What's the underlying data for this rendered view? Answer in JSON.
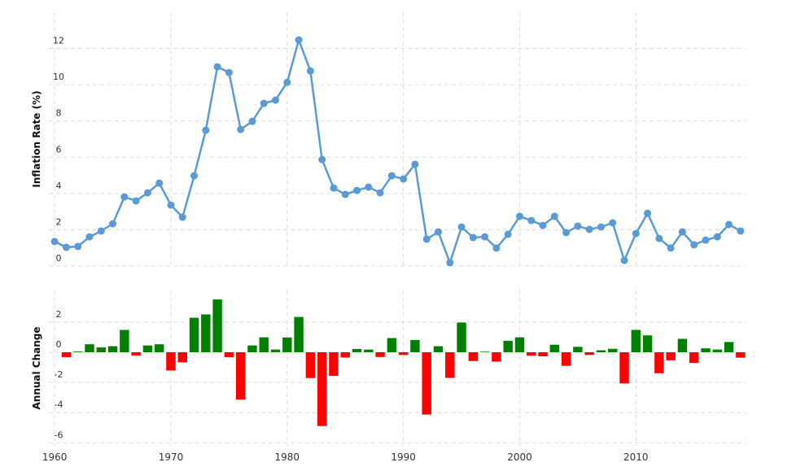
{
  "chart_data": [
    {
      "type": "line",
      "y_label": "Inflation Rate (%)",
      "x": [
        1960,
        1961,
        1962,
        1963,
        1964,
        1965,
        1966,
        1967,
        1968,
        1969,
        1970,
        1971,
        1972,
        1973,
        1974,
        1975,
        1976,
        1977,
        1978,
        1979,
        1980,
        1981,
        1982,
        1983,
        1984,
        1985,
        1986,
        1987,
        1988,
        1989,
        1990,
        1991,
        1992,
        1993,
        1994,
        1995,
        1996,
        1997,
        1998,
        1999,
        2000,
        2001,
        2002,
        2003,
        2004,
        2005,
        2006,
        2007,
        2008,
        2009,
        2010,
        2011,
        2012,
        2013,
        2014,
        2015,
        2016,
        2017,
        2018,
        2019
      ],
      "values": [
        1.35,
        1.03,
        1.08,
        1.61,
        1.93,
        2.33,
        3.81,
        3.59,
        4.04,
        4.57,
        3.36,
        2.69,
        4.98,
        7.49,
        10.99,
        10.67,
        7.53,
        7.98,
        8.97,
        9.15,
        10.13,
        12.47,
        10.76,
        5.87,
        4.3,
        3.95,
        4.17,
        4.35,
        4.04,
        4.98,
        4.8,
        5.61,
        1.48,
        1.88,
        0.18,
        2.15,
        1.57,
        1.61,
        0.99,
        1.75,
        2.74,
        2.51,
        2.24,
        2.74,
        1.84,
        2.2,
        2.02,
        2.15,
        2.38,
        0.31,
        1.79,
        2.91,
        1.52,
        0.99,
        1.88,
        1.17,
        1.43,
        1.61,
        2.29,
        1.93
      ],
      "color": "#5b9bd5",
      "xlim": [
        1959.5,
        2019.5
      ],
      "ylim": [
        0,
        14
      ],
      "yticks": [
        0,
        2,
        4,
        6,
        8,
        10,
        12
      ],
      "grid": true
    },
    {
      "type": "bar",
      "y_label": "Annual Change",
      "x": [
        1961,
        1962,
        1963,
        1964,
        1965,
        1966,
        1967,
        1968,
        1969,
        1970,
        1971,
        1972,
        1973,
        1974,
        1975,
        1976,
        1977,
        1978,
        1979,
        1980,
        1981,
        1982,
        1983,
        1984,
        1985,
        1986,
        1987,
        1988,
        1989,
        1990,
        1991,
        1992,
        1993,
        1994,
        1995,
        1996,
        1997,
        1998,
        1999,
        2000,
        2001,
        2002,
        2003,
        2004,
        2005,
        2006,
        2007,
        2008,
        2009,
        2010,
        2011,
        2012,
        2013,
        2014,
        2015,
        2016,
        2017,
        2018,
        2019
      ],
      "values": [
        -0.32,
        0.05,
        0.53,
        0.32,
        0.4,
        1.48,
        -0.22,
        0.45,
        0.53,
        -1.21,
        -0.67,
        2.29,
        2.51,
        3.5,
        -0.32,
        -3.14,
        0.45,
        0.99,
        0.18,
        0.98,
        2.34,
        -1.71,
        -4.89,
        -1.57,
        -0.35,
        0.22,
        0.18,
        -0.31,
        0.94,
        -0.18,
        0.81,
        -4.13,
        0.4,
        -1.7,
        1.97,
        -0.58,
        0.04,
        -0.62,
        0.76,
        0.99,
        -0.23,
        -0.27,
        0.5,
        -0.9,
        0.36,
        -0.18,
        0.13,
        0.23,
        -2.07,
        1.48,
        1.12,
        -1.39,
        -0.53,
        0.89,
        -0.71,
        0.26,
        0.18,
        0.68,
        -0.36
      ],
      "positive_color": "#008000",
      "negative_color": "#ff0000",
      "xlim": [
        1959.5,
        2019.5
      ],
      "xticks": [
        1960,
        1970,
        1980,
        1990,
        2000,
        2010
      ],
      "ylim": [
        -6.2,
        4.1
      ],
      "yticks": [
        -6,
        -4,
        -2,
        0,
        2
      ],
      "grid": true
    }
  ]
}
